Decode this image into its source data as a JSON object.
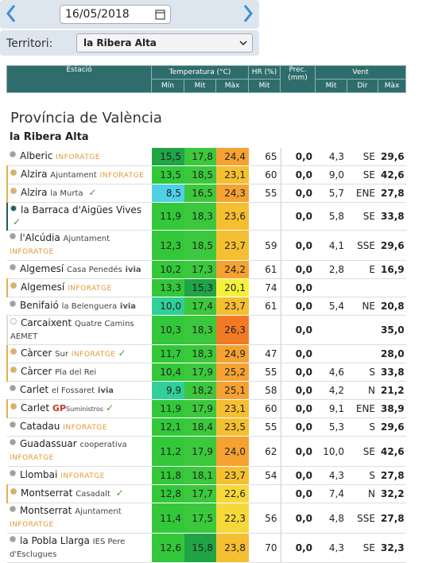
{
  "header": {
    "date": "16/05/2018",
    "territory_label": "Territori:",
    "territory": "la Ribera Alta"
  },
  "table": {
    "groups": [
      "Estació",
      "Temperatura (°C)",
      "HR (%)",
      "Prec. (mm)",
      "Vent"
    ],
    "subheaders": [
      "Mín",
      "Mit",
      "Màx",
      "Mit",
      "Mit",
      "Dir",
      "Màx"
    ],
    "province": "Província de València",
    "region": "la Ribera Alta",
    "rows": [
      {
        "station": "Alberic",
        "network": "INFORATGE",
        "dot": "#9e9e9e",
        "cells": [
          "15,5",
          "17,8",
          "24,4",
          "65",
          "0,0",
          "4,3",
          "SE",
          "29,6"
        ]
      },
      {
        "station": "Alzira",
        "detail": "Ajuntament",
        "network": "INFORATGE",
        "dot": "#e8b04a",
        "cells": [
          "13,5",
          "18,5",
          "23,1",
          "60",
          "0,0",
          "9,0",
          "SE",
          "42,6"
        ]
      },
      {
        "station": "Alzira",
        "detail": "la Murta",
        "dot": "#e8b04a",
        "check": true,
        "cells": [
          "8,5",
          "16,5",
          "24,3",
          "55",
          "0,0",
          "5,7",
          "ENE",
          "27,8"
        ]
      },
      {
        "station": "la Barraca d'Aigües Vives",
        "dot": "#1f5a5a",
        "check": true,
        "cells": [
          "11,9",
          "18,3",
          "23,6",
          null,
          "0,0",
          "5,8",
          "SE",
          "33,8"
        ]
      },
      {
        "station": "l'Alcúdia",
        "detail": "Ajuntament",
        "network": "INFORATGE",
        "dot": "#9e9e9e",
        "cells": [
          "12,3",
          "18,5",
          "23,7",
          "59",
          "0,0",
          "4,1",
          "SSE",
          "29,6"
        ]
      },
      {
        "station": "Algemesí",
        "detail": "Casa Penedés",
        "network": "ivia",
        "dot": "#9e9e9e",
        "cells": [
          "10,2",
          "17,3",
          "24,2",
          "61",
          "0,0",
          "2,8",
          "E",
          "16,9"
        ]
      },
      {
        "station": "Algemesí",
        "network": "INFORATGE",
        "dot": "#e8b04a",
        "cells": [
          "13,3",
          "15,3",
          "20,1",
          "74",
          "0,0",
          null,
          null,
          null
        ]
      },
      {
        "station": "Benifaió",
        "detail": "la Belenguera",
        "network": "ivia",
        "dot": "#9e9e9e",
        "cells": [
          "10,0",
          "17,4",
          "23,7",
          "61",
          "0,0",
          "5,4",
          "NE",
          "20,8"
        ]
      },
      {
        "station": "Carcaixent",
        "detail": "Quatre Camins",
        "network": "AEMET",
        "dot": "#ffffff",
        "cells": [
          "10,3",
          "18,3",
          "26,3",
          null,
          "0,0",
          null,
          null,
          "35,0"
        ]
      },
      {
        "station": "Càrcer",
        "detail": "Sur",
        "network": "INFORATGE",
        "dot": "#e8b04a",
        "check": true,
        "cells": [
          "11,7",
          "18,3",
          "24,9",
          "47",
          "0,0",
          null,
          null,
          "28,0"
        ]
      },
      {
        "station": "Càrcer",
        "detail": "Pla del Rei",
        "dot": "#e8b04a",
        "cells": [
          "10,4",
          "17,9",
          "25,2",
          "55",
          "0,0",
          "4,6",
          "S",
          "33,8"
        ]
      },
      {
        "station": "Carlet",
        "detail": "el Fossaret",
        "network": "ivia",
        "dot": "#9e9e9e",
        "cells": [
          "9,9",
          "18,2",
          "25,1",
          "58",
          "0,0",
          "4,2",
          "N",
          "21,2"
        ]
      },
      {
        "station": "Carlet",
        "network": "GP",
        "detail": "Suministros",
        "dot": "#e8b04a",
        "check": true,
        "cells": [
          "11,9",
          "17,9",
          "23,1",
          "60",
          "0,0",
          "9,1",
          "ENE",
          "38,9"
        ]
      },
      {
        "station": "Catadau",
        "network": "INFORATGE",
        "dot": "#9e9e9e",
        "cells": [
          "12,1",
          "18,4",
          "23,5",
          "55",
          "0,0",
          "5,3",
          "S",
          "29,6"
        ]
      },
      {
        "station": "Guadassuar",
        "detail": "cooperativa",
        "network": "INFORATGE",
        "dot": "#9e9e9e",
        "cells": [
          "11,2",
          "17,9",
          "24,0",
          "62",
          "0,0",
          "10,0",
          "SE",
          "42,6"
        ]
      },
      {
        "station": "Llombai",
        "network": "INFORATGE",
        "dot": "#9e9e9e",
        "cells": [
          "11,8",
          "18,1",
          "23,7",
          "54",
          "0,0",
          "4,3",
          "S",
          "27,8"
        ]
      },
      {
        "station": "Montserrat",
        "detail": "Casadalt",
        "dot": "#e8b04a",
        "check": true,
        "cells": [
          "12,8",
          "17,7",
          "22,6",
          null,
          "0,0",
          "7,4",
          "N",
          "32,2"
        ]
      },
      {
        "station": "Montserrat",
        "detail": "Ajuntament",
        "network": "INFORATGE",
        "dot": "#9e9e9e",
        "cells": [
          "11,4",
          "17,5",
          "22,3",
          "56",
          "0,0",
          "4,8",
          "SSE",
          "27,8"
        ]
      },
      {
        "station": "la Pobla Llarga",
        "detail": "IES Pere d'Esclugues",
        "dot": "#9e9e9e",
        "cells": [
          "12,6",
          "15,8",
          "23,8",
          "70",
          "0,0",
          "4,3",
          "SE",
          "32,3"
        ]
      }
    ]
  }
}
